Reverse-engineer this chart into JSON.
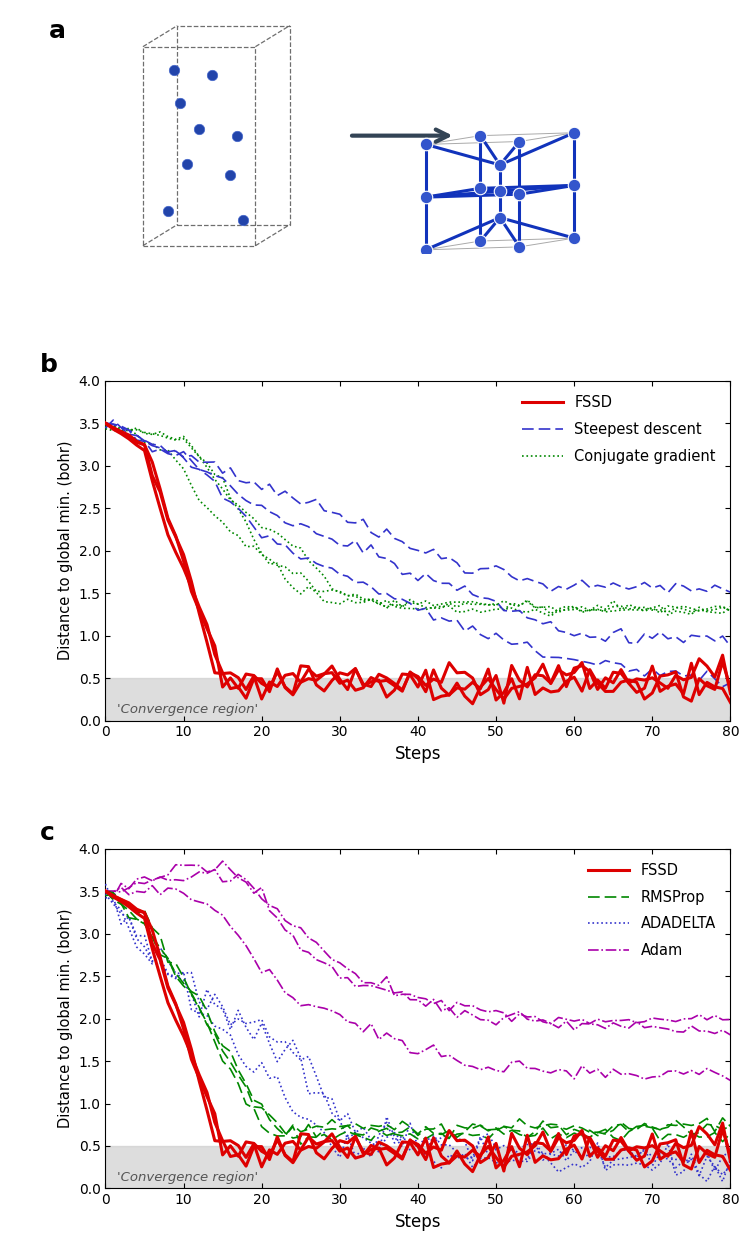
{
  "convergence_threshold": 0.5,
  "convergence_label": "'Convergence region'",
  "xlim": [
    0,
    80
  ],
  "ylim": [
    0,
    4.0
  ],
  "yticks": [
    0,
    0.5,
    1.0,
    1.5,
    2.0,
    2.5,
    3.0,
    3.5,
    4.0
  ],
  "xticks": [
    0,
    10,
    20,
    30,
    40,
    50,
    60,
    70,
    80
  ],
  "xlabel": "Steps",
  "ylabel": "Distance to global min. (bohr)",
  "panel_b": {
    "fssd_color": "#dd0000",
    "steepest_color": "#3333cc",
    "conjugate_color": "#008800",
    "fssd_lw": 2.2,
    "other_lw": 1.2
  },
  "panel_c": {
    "fssd_color": "#dd0000",
    "rmsprop_color": "#008800",
    "adadelta_color": "#3333cc",
    "adam_color": "#aa00aa",
    "fssd_lw": 2.2,
    "other_lw": 1.2
  }
}
